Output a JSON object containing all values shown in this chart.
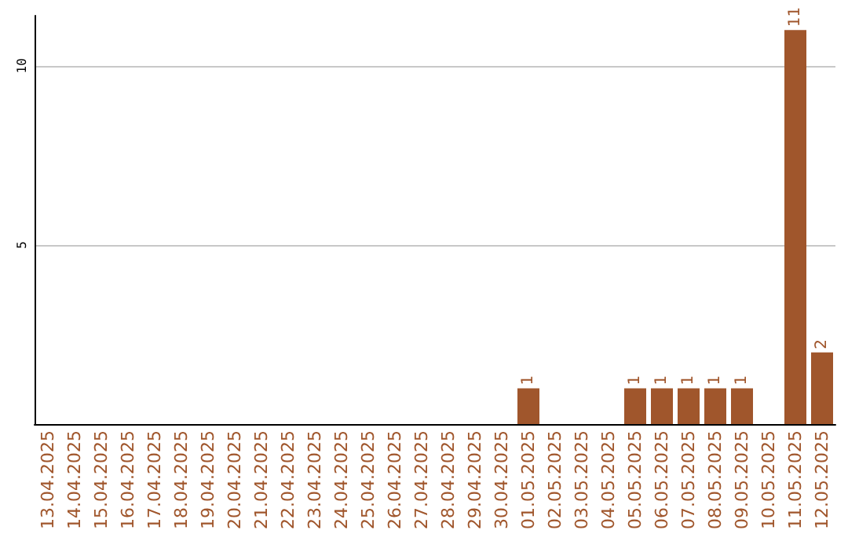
{
  "chart_data": {
    "type": "bar",
    "categories": [
      "13.04.2025",
      "14.04.2025",
      "15.04.2025",
      "16.04.2025",
      "17.04.2025",
      "18.04.2025",
      "19.04.2025",
      "20.04.2025",
      "21.04.2025",
      "22.04.2025",
      "23.04.2025",
      "24.04.2025",
      "25.04.2025",
      "26.04.2025",
      "27.04.2025",
      "28.04.2025",
      "29.04.2025",
      "30.04.2025",
      "01.05.2025",
      "02.05.2025",
      "03.05.2025",
      "04.05.2025",
      "05.05.2025",
      "06.05.2025",
      "07.05.2025",
      "08.05.2025",
      "09.05.2025",
      "10.05.2025",
      "11.05.2025",
      "12.05.2025"
    ],
    "values": [
      0,
      0,
      0,
      0,
      0,
      0,
      0,
      0,
      0,
      0,
      0,
      0,
      0,
      0,
      0,
      0,
      0,
      0,
      1,
      0,
      0,
      0,
      1,
      1,
      1,
      1,
      1,
      0,
      11,
      2
    ],
    "value_labels": [
      null,
      null,
      null,
      null,
      null,
      null,
      null,
      null,
      null,
      null,
      null,
      null,
      null,
      null,
      null,
      null,
      null,
      null,
      "1",
      null,
      null,
      null,
      "1",
      "1",
      "1",
      "1",
      "1",
      null,
      "11",
      "2"
    ],
    "color": "#a0562c",
    "ylim": [
      0,
      11.4
    ],
    "yticks": [
      5,
      10
    ],
    "grid": "y"
  }
}
